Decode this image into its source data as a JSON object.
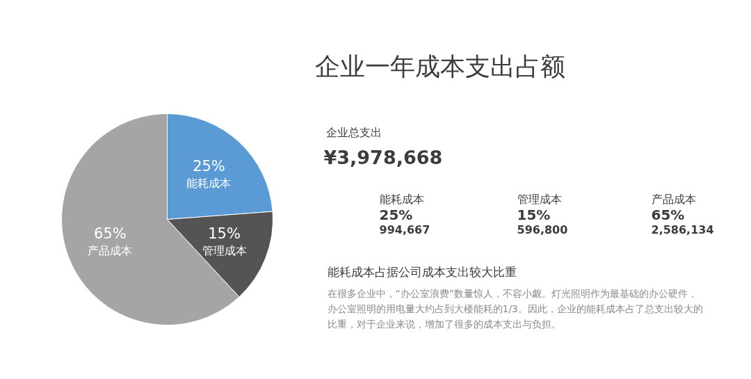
{
  "chart_data": {
    "type": "pie",
    "title": "企业一年成本支出占额",
    "categories": [
      "能耗成本",
      "管理成本",
      "产品成本"
    ],
    "values": [
      25,
      15,
      65
    ],
    "value_labels": [
      "25%",
      "15%",
      "65%"
    ],
    "colors": [
      "#5b9bd5",
      "#545454",
      "#a5a5a5"
    ],
    "annotations": [
      "企业总支出",
      "¥3,978,668",
      "994,667",
      "596,800",
      "2,586,134",
      "能耗成本占据公司成本支出较大比重",
      "在很多企业中，“办公室浪费”数量惊人，不容小觑。灯光照明作为最基础的办公硬件，办公室照明的用电量大约占到大楼能耗的1/3。因此，企业的能耗成本占了总支出较大的比重，对于企业来说，增加了很多的成本支出与负担。"
    ]
  }
}
